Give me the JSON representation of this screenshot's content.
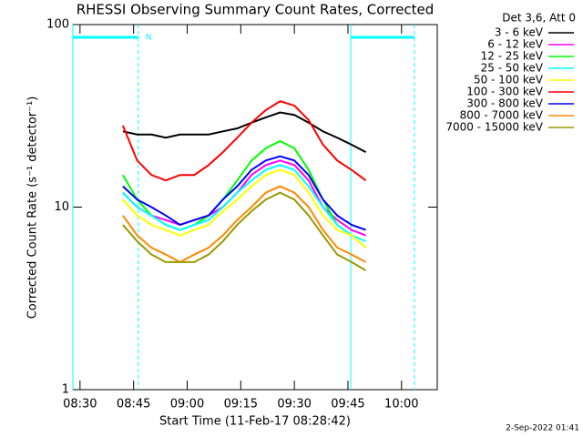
{
  "chart_data": {
    "type": "line",
    "title": "RHESSI Observing Summary Count Rates, Corrected",
    "xlabel": "Start Time (11-Feb-17 08:28:42)",
    "ylabel": "Corrected Count Rate (s⁻¹ detector⁻¹)",
    "legend_title": "Det 3,6, Att 0",
    "timestamp": "2-Sep-2022 01:41",
    "log_y": true,
    "xlim": [
      508,
      610
    ],
    "ylim": [
      1,
      100
    ],
    "yticks": [
      1,
      10,
      100
    ],
    "xticks": [
      {
        "value": 510,
        "label": "08:30"
      },
      {
        "value": 525,
        "label": "08:45"
      },
      {
        "value": 540,
        "label": "09:00"
      },
      {
        "value": 555,
        "label": "09:15"
      },
      {
        "value": 570,
        "label": "09:30"
      },
      {
        "value": 585,
        "label": "09:45"
      },
      {
        "value": 600,
        "label": "10:00"
      }
    ],
    "annotations": [
      {
        "label": "N",
        "start": 508,
        "end": 526.3
      },
      {
        "start": 585.8,
        "end": 603.6
      }
    ],
    "annotation_color": "#00ffff",
    "x": [
      522,
      526,
      530,
      534,
      538,
      542,
      546,
      550,
      554,
      558,
      562,
      566,
      570,
      574,
      578,
      582,
      586,
      590
    ],
    "series": [
      {
        "name": "3 - 6 keV",
        "color": "#ffffff",
        "line_color": "#000000",
        "values": [
          26,
          25,
          25,
          24,
          25,
          25,
          25,
          26,
          27,
          29,
          31,
          33,
          32,
          29,
          26,
          24,
          22,
          20
        ]
      },
      {
        "name": "6 - 12 keV",
        "color": "#ff00ff",
        "values": [
          12,
          10,
          9,
          8.5,
          8,
          8.5,
          9,
          10,
          12,
          15,
          17,
          18,
          17,
          14,
          10,
          8.5,
          7.5,
          7
        ]
      },
      {
        "name": "12 - 25 keV",
        "color": "#00ff00",
        "values": [
          15,
          11,
          9,
          8,
          7.5,
          8,
          9,
          11,
          14,
          18,
          21,
          23,
          21,
          16,
          11,
          8,
          7,
          6
        ]
      },
      {
        "name": "25 - 50 keV",
        "color": "#00ffff",
        "values": [
          12,
          10,
          9,
          8,
          7.5,
          8,
          8.5,
          10,
          12,
          14,
          16,
          17,
          16,
          13,
          10,
          8,
          7,
          6.5
        ]
      },
      {
        "name": "50 - 100 keV",
        "color": "#ffff00",
        "values": [
          11,
          9,
          8,
          7.5,
          7,
          7.5,
          8,
          9.5,
          11,
          13,
          15,
          16,
          15,
          12,
          9,
          7.5,
          7,
          6
        ]
      },
      {
        "name": "100 - 300 keV",
        "color": "#ff0000",
        "values": [
          28,
          18,
          15,
          14,
          15,
          15,
          17,
          20,
          24,
          29,
          34,
          38,
          36,
          30,
          22,
          18,
          16,
          14
        ]
      },
      {
        "name": "300 - 800 keV",
        "color": "#0000ff",
        "values": [
          13,
          11,
          10,
          9,
          8,
          8.5,
          9,
          11,
          13,
          16,
          18,
          19,
          18,
          15,
          11,
          9,
          8,
          7.5
        ]
      },
      {
        "name": "800 - 7000 keV",
        "color": "#ff8800",
        "values": [
          9,
          7,
          6,
          5.5,
          5,
          5.5,
          6,
          7,
          8.5,
          10,
          12,
          13,
          12,
          10,
          7.5,
          6,
          5.5,
          5
        ]
      },
      {
        "name": "7000 - 15000 keV",
        "color": "#999900",
        "values": [
          8,
          6.5,
          5.5,
          5,
          5,
          5,
          5.5,
          6.5,
          8,
          9.5,
          11,
          12,
          11,
          9,
          7,
          5.5,
          5,
          4.5
        ]
      }
    ]
  }
}
